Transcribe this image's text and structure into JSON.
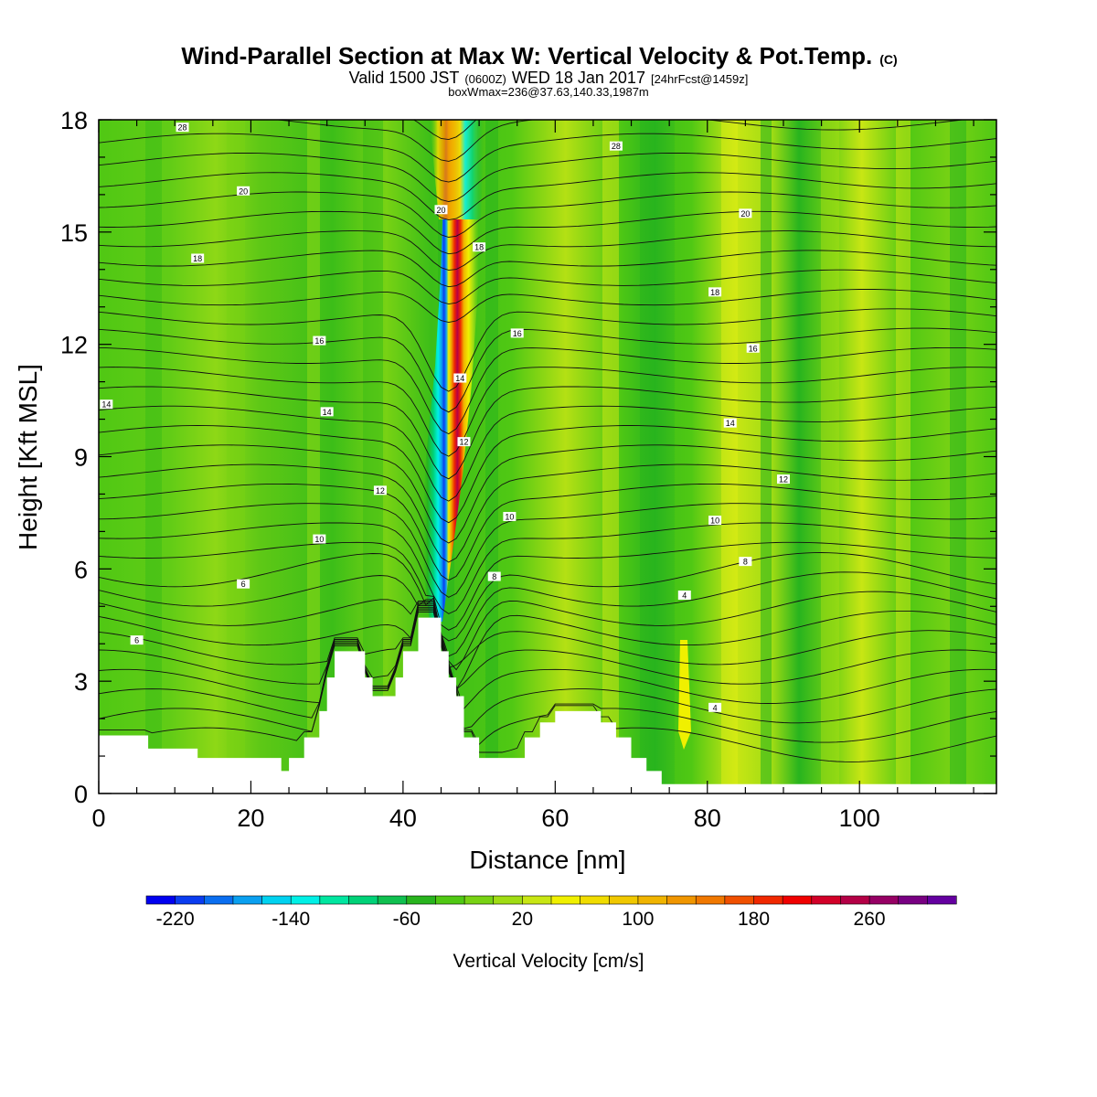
{
  "header": {
    "title": "Wind-Parallel Section at Max W: Vertical Velocity & Pot.Temp.",
    "copyright": "(C)",
    "valid_prefix": "Valid 1500 JST",
    "valid_utc": "(0600Z)",
    "valid_date": "WED 18 Jan 2017",
    "forecast": "[24hrFcst@1459z]",
    "boxline": "boxWmax=236@37.63,140.33,1987m"
  },
  "chart_data": {
    "type": "heatmap",
    "xlabel": "Distance [nm]",
    "ylabel": "Height [Kft MSL]",
    "xlim": [
      0,
      118
    ],
    "ylim": [
      0,
      18
    ],
    "x_ticks": [
      0,
      20,
      40,
      60,
      80,
      100
    ],
    "y_ticks": [
      0,
      3,
      6,
      9,
      12,
      15,
      18
    ],
    "colorbar": {
      "label": "Vertical Velocity [cm/s]",
      "tick_labels": [
        "-220",
        "-140",
        "-60",
        "20",
        "100",
        "180",
        "260"
      ],
      "colors": [
        "#0000f0",
        "#0a3cf0",
        "#0a6ef0",
        "#0aa0f0",
        "#00d2f0",
        "#00f0e6",
        "#00e6a0",
        "#00d278",
        "#10c050",
        "#28b41e",
        "#50c814",
        "#78d214",
        "#a0dc14",
        "#c8e614",
        "#f0f000",
        "#f0dc00",
        "#f0c800",
        "#f0b400",
        "#f09600",
        "#f07800",
        "#f05000",
        "#f02800",
        "#f00000",
        "#d20028",
        "#b40046",
        "#960064",
        "#780082",
        "#6400a0"
      ]
    },
    "terrain_profile": [
      [
        0,
        1.55
      ],
      [
        6.5,
        1.55
      ],
      [
        6.5,
        1.2
      ],
      [
        13,
        1.2
      ],
      [
        13,
        0.95
      ],
      [
        20,
        0.95
      ],
      [
        24,
        0.95
      ],
      [
        24,
        0.6
      ],
      [
        25,
        0.6
      ],
      [
        25,
        0.95
      ],
      [
        27,
        0.95
      ],
      [
        27,
        1.5
      ],
      [
        29,
        1.5
      ],
      [
        29,
        2.2
      ],
      [
        30,
        2.2
      ],
      [
        30,
        3.1
      ],
      [
        31,
        3.1
      ],
      [
        31,
        3.8
      ],
      [
        35,
        3.8
      ],
      [
        35,
        3.1
      ],
      [
        36,
        3.1
      ],
      [
        36,
        2.6
      ],
      [
        39,
        2.6
      ],
      [
        39,
        3.1
      ],
      [
        40,
        3.1
      ],
      [
        40,
        3.8
      ],
      [
        42,
        3.8
      ],
      [
        42,
        4.7
      ],
      [
        45,
        4.7
      ],
      [
        45,
        3.8
      ],
      [
        46,
        3.8
      ],
      [
        46,
        3.1
      ],
      [
        47,
        3.1
      ],
      [
        47,
        2.6
      ],
      [
        48,
        2.6
      ],
      [
        48,
        1.5
      ],
      [
        50,
        1.5
      ],
      [
        50,
        0.95
      ],
      [
        56,
        0.95
      ],
      [
        56,
        1.5
      ],
      [
        58,
        1.5
      ],
      [
        58,
        1.9
      ],
      [
        60,
        1.9
      ],
      [
        60,
        2.2
      ],
      [
        66,
        2.2
      ],
      [
        66,
        1.9
      ],
      [
        68,
        1.9
      ],
      [
        68,
        1.5
      ],
      [
        70,
        1.5
      ],
      [
        70,
        0.95
      ],
      [
        72,
        0.95
      ],
      [
        72,
        0.6
      ],
      [
        74,
        0.6
      ],
      [
        74,
        0.25
      ],
      [
        118,
        0.25
      ]
    ],
    "theta_contour_labels": [
      {
        "x": 11,
        "y": 17.8,
        "label": "28"
      },
      {
        "x": 68,
        "y": 17.3,
        "label": "28"
      },
      {
        "x": 19,
        "y": 16.1,
        "label": "20"
      },
      {
        "x": 45,
        "y": 15.6,
        "label": "20"
      },
      {
        "x": 85,
        "y": 15.5,
        "label": "20"
      },
      {
        "x": 13,
        "y": 14.3,
        "label": "18"
      },
      {
        "x": 50,
        "y": 14.6,
        "label": "18"
      },
      {
        "x": 81,
        "y": 13.4,
        "label": "18"
      },
      {
        "x": 29,
        "y": 12.1,
        "label": "16"
      },
      {
        "x": 55,
        "y": 12.3,
        "label": "16"
      },
      {
        "x": 86,
        "y": 11.9,
        "label": "16"
      },
      {
        "x": 1,
        "y": 10.4,
        "label": "14"
      },
      {
        "x": 30,
        "y": 10.2,
        "label": "14"
      },
      {
        "x": 47.5,
        "y": 11.1,
        "label": "14"
      },
      {
        "x": 83,
        "y": 9.9,
        "label": "14"
      },
      {
        "x": 48,
        "y": 9.4,
        "label": "12"
      },
      {
        "x": 37,
        "y": 8.1,
        "label": "12"
      },
      {
        "x": 90,
        "y": 8.4,
        "label": "12"
      },
      {
        "x": 29,
        "y": 6.8,
        "label": "10"
      },
      {
        "x": 54,
        "y": 7.4,
        "label": "10"
      },
      {
        "x": 81,
        "y": 7.3,
        "label": "10"
      },
      {
        "x": 19,
        "y": 5.6,
        "label": "6"
      },
      {
        "x": 52,
        "y": 5.8,
        "label": "8"
      },
      {
        "x": 85,
        "y": 6.2,
        "label": "8"
      },
      {
        "x": 77,
        "y": 5.3,
        "label": "4"
      },
      {
        "x": 5,
        "y": 4.1,
        "label": "6"
      },
      {
        "x": 81,
        "y": 2.3,
        "label": "4"
      }
    ]
  }
}
